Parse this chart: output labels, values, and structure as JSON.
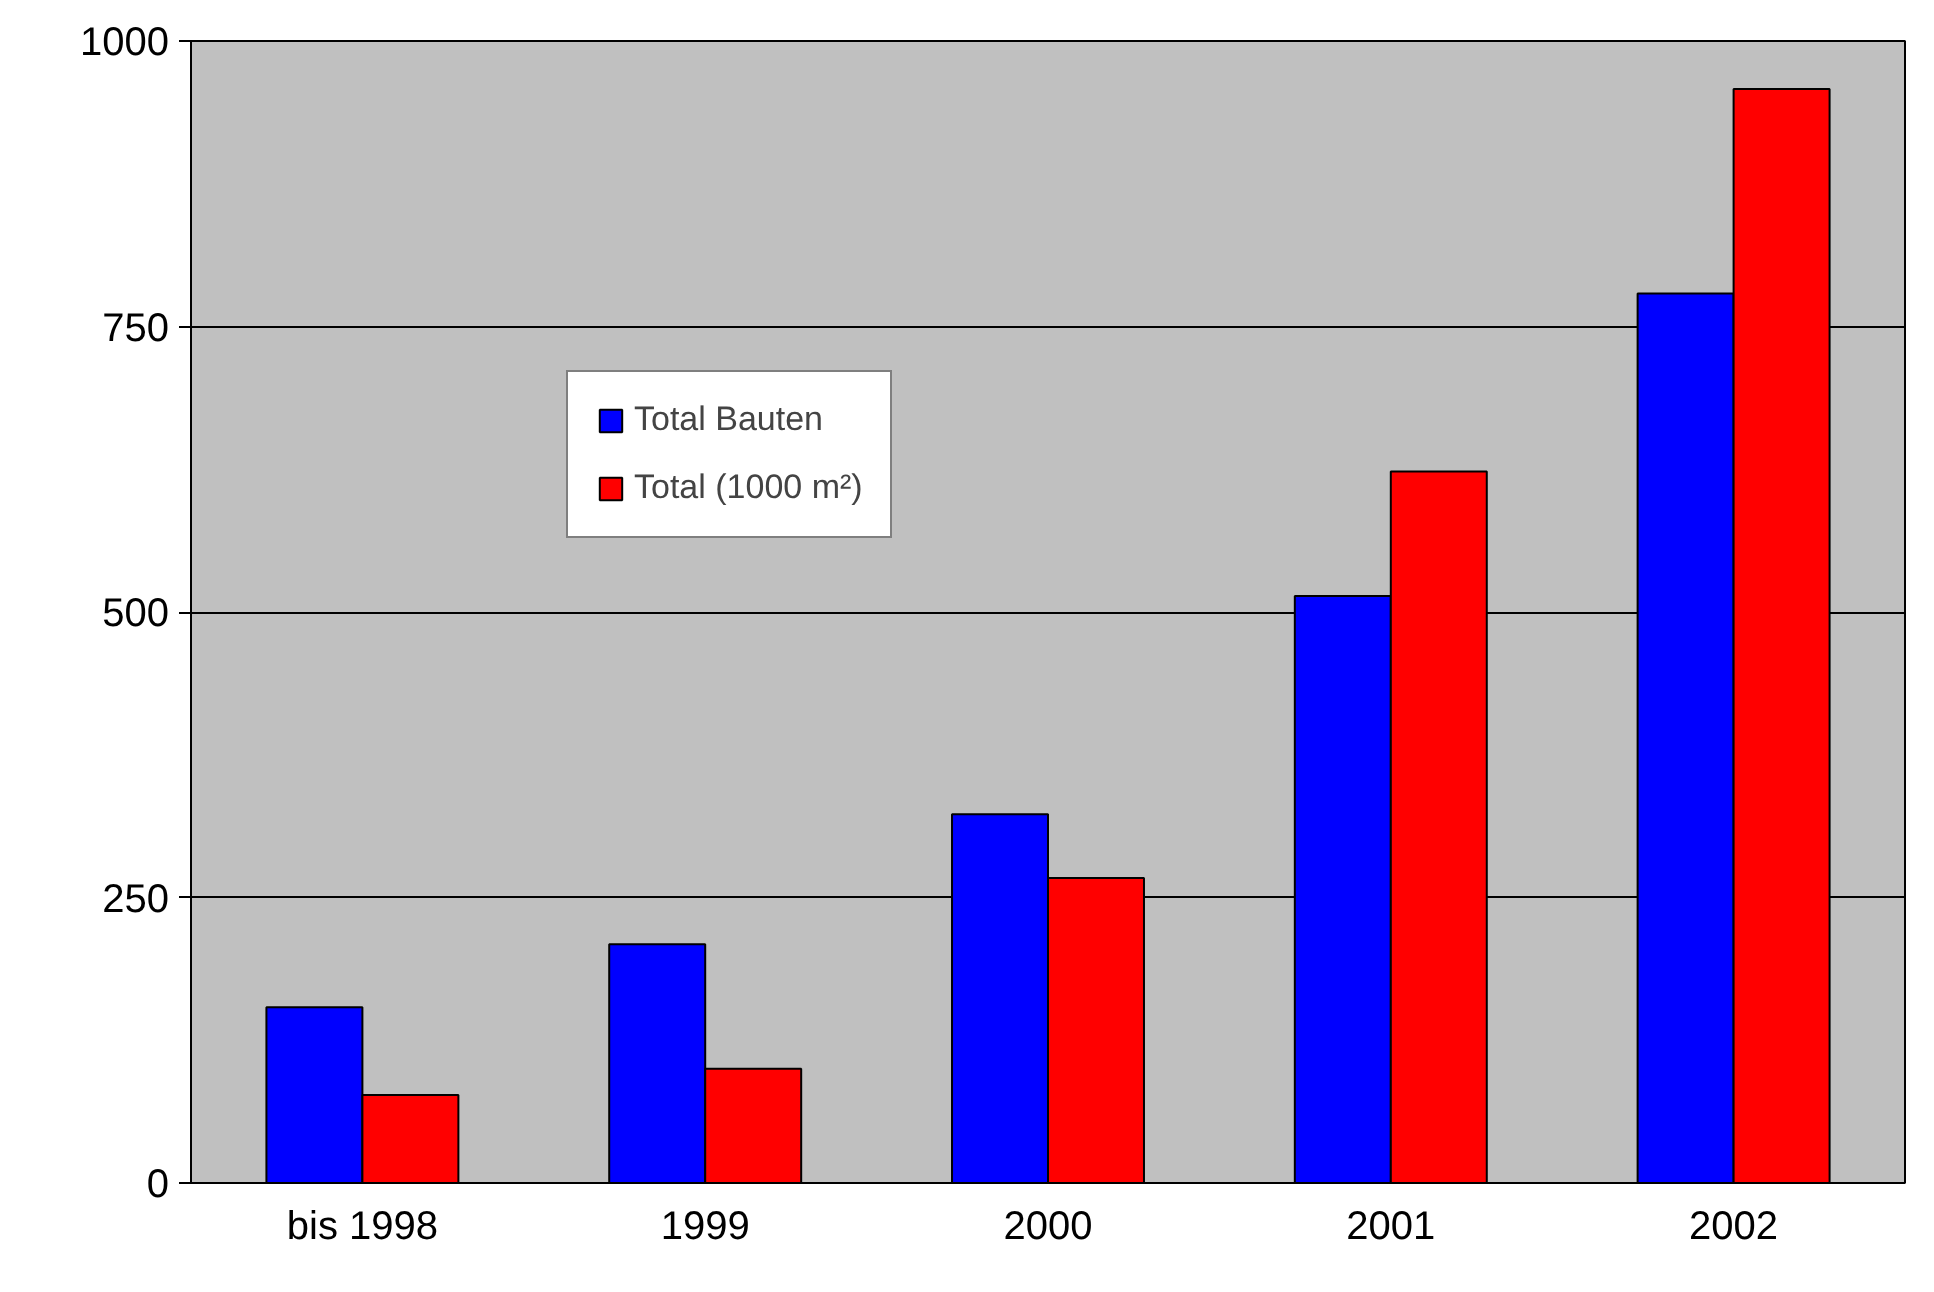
{
  "chart_data": {
    "type": "bar",
    "categories": [
      "bis 1998",
      "1999",
      "2000",
      "2001",
      "2002"
    ],
    "series": [
      {
        "name": "Total Bauten",
        "color": "#0000ff",
        "values": [
          154,
          209,
          323,
          514,
          779
        ]
      },
      {
        "name": "Total (1000 m²)",
        "color": "#ff0000",
        "values": [
          77,
          100,
          267,
          623,
          958
        ]
      }
    ],
    "ylim": [
      0,
      1000
    ],
    "yticks": [
      0,
      250,
      500,
      750,
      1000
    ],
    "grid": "y",
    "legend": "top left"
  }
}
